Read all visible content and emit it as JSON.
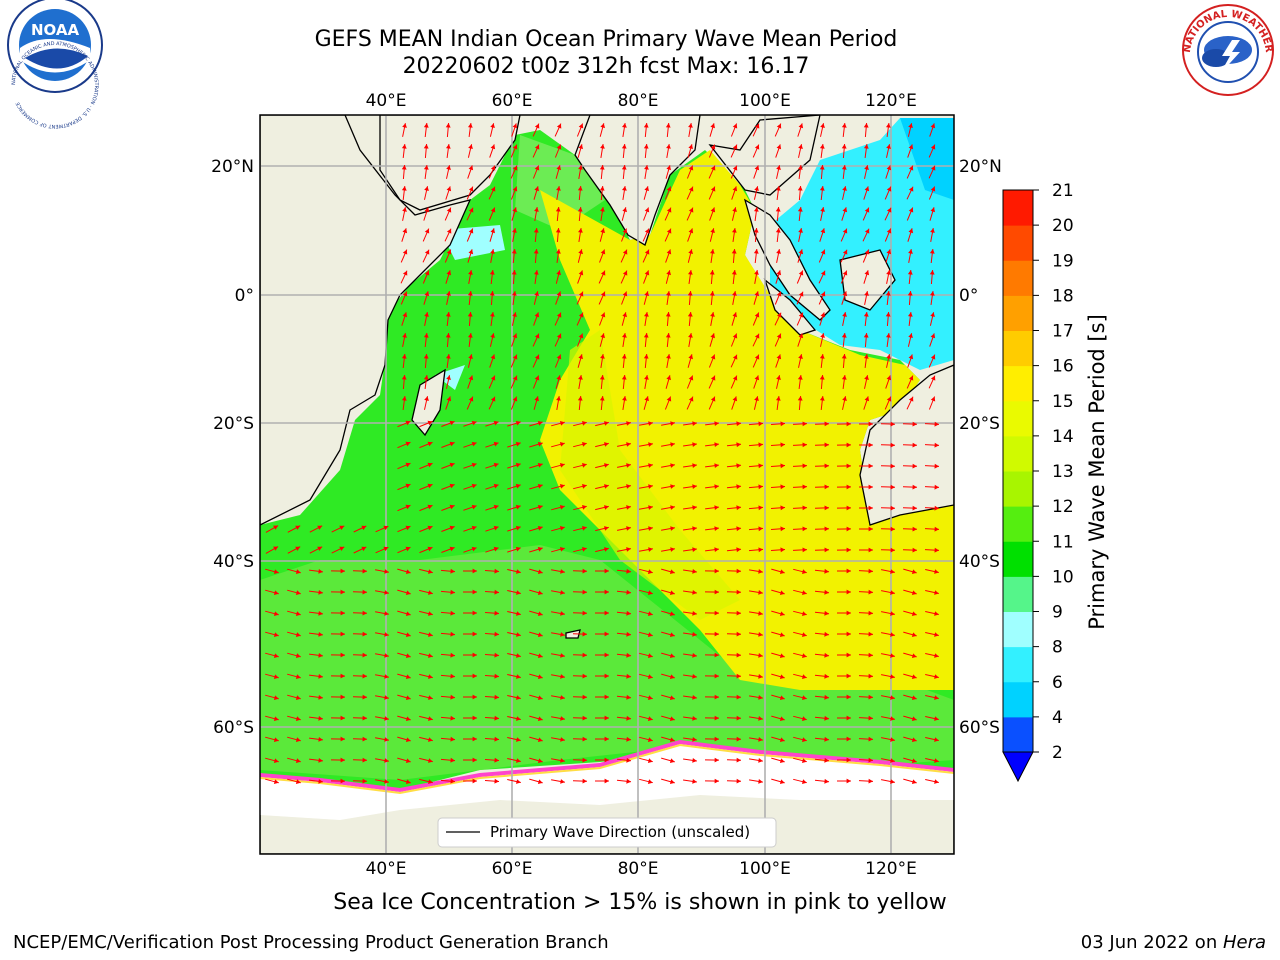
{
  "title": {
    "line1": "GEFS MEAN Indian Ocean Primary Wave Mean Period",
    "line2": "20220602 t00z 312h fcst   Max: 16.17"
  },
  "map": {
    "lon_labels_top": [
      "40°E",
      "60°E",
      "80°E",
      "100°E",
      "120°E"
    ],
    "lon_labels_bottom": [
      "40°E",
      "60°E",
      "80°E",
      "100°E",
      "120°E"
    ],
    "lat_labels_left": [
      "20°N",
      "0°",
      "20°S",
      "40°S",
      "60°S"
    ],
    "lat_labels_right": [
      "20°N",
      "0°",
      "20°S",
      "40°S",
      "60°S"
    ],
    "lon_range": [
      20,
      130
    ],
    "lat_range": [
      -70,
      28
    ],
    "legend_label": "Primary Wave Direction (unscaled)",
    "arrow_color": "#ff0000",
    "land_color": "#efefe0",
    "ice_note": "Sea Ice Concentration > 15% is shown in pink to yellow"
  },
  "colorbar": {
    "label": "Primary Wave Mean Period [s]",
    "ticks": [
      "2",
      "4",
      "6",
      "8",
      "9",
      "10",
      "11",
      "12",
      "13",
      "14",
      "15",
      "16",
      "17",
      "18",
      "19",
      "20",
      "21"
    ],
    "colors": [
      "#0a50ff",
      "#00d2ff",
      "#33f0ff",
      "#a0ffff",
      "#55f58a",
      "#00e000",
      "#55ee10",
      "#a8f500",
      "#d0fa00",
      "#eafa00",
      "#ffee00",
      "#ffcc00",
      "#ffa000",
      "#ff7a00",
      "#ff4a00",
      "#ff1a00"
    ],
    "extend_color": "#0000ff"
  },
  "footer": {
    "left": "NCEP/EMC/Verification Post Processing Product Generation Branch",
    "date": "03 Jun 2022 on ",
    "machine": "Hera"
  },
  "logos": {
    "noaa_text": "NOAA",
    "noaa_ring": "NATIONAL OCEANIC AND ATMOSPHERIC ADMINISTRATION · U.S. DEPARTMENT OF COMMERCE",
    "nws_ring": "NATIONAL WEATHER SERVICE"
  }
}
